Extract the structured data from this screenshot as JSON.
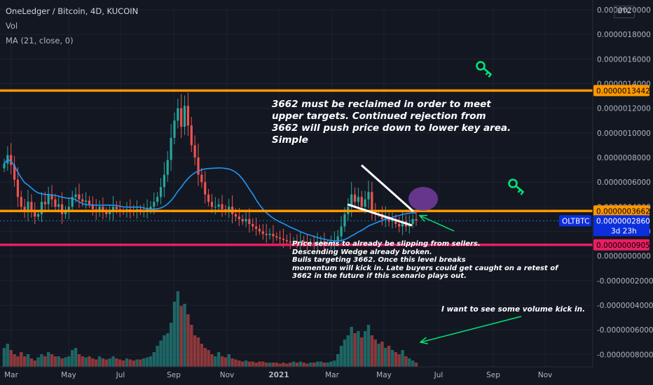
{
  "header": {
    "symbol_line": "OneLedger / Bitcoin, 4D, KUCOIN",
    "vol_label": "Vol",
    "ma_label": "MA (21, close, 0)",
    "currency_badge": "BTC"
  },
  "annotations": {
    "upper_note": [
      "3662 must be reclaimed in order to meet",
      "upper targets. Continued rejection from",
      "3662 will push price down to lower key area.",
      "Simple"
    ],
    "lower_note": [
      "Price seems to already be slipping from sellers.",
      "Descending Wedge already broken.",
      "Bulls targeting 3662. Once this level breaks",
      "momentum will kick in. Late buyers could get caught on a retest of",
      "3662 in the future if this scenario plays out."
    ],
    "volume_note": "I want to see some volume kick in."
  },
  "price_labels": {
    "level_13442": "0.0000013442",
    "level_3662": "0.0000003662",
    "current": "0.0000002860",
    "ticker": "OLTBTC",
    "countdown": "3d 23h",
    "level_905": "0.0000000905"
  },
  "colors": {
    "background": "#131722",
    "up": "#26a69a",
    "down": "#ef5350",
    "orange_level": "#ff9800",
    "pink_level": "#e91e63",
    "ma_line": "#2196f3",
    "wedge": "#ffffff",
    "key_icon": "#00e676",
    "arrow": "#00e676",
    "circle": "#7b3fa6",
    "current_label": "#0c2edb"
  },
  "chart_data": {
    "type": "candlestick",
    "y_axis_ticks": [
      "0.0000020000",
      "0.0000018000",
      "0.0000016000",
      "0.0000014000",
      "0.0000012000",
      "0.0000010000",
      "0.0000008000",
      "0.0000006000",
      "0.0000004000",
      "0.0000002000",
      "0.0000000000",
      "-0.0000002000",
      "-0.0000004000",
      "-0.0000006000",
      "-0.0000008000"
    ],
    "x_axis_ticks": [
      "Mar",
      "May",
      "Jul",
      "Sep",
      "Nov",
      "2021",
      "Mar",
      "May",
      "Jul",
      "Sep",
      "Nov"
    ],
    "ylim": [
      -9e-07,
      2e-06
    ],
    "horizontal_levels": [
      {
        "value": 1.3442e-06,
        "color": "orange"
      },
      {
        "value": 3.662e-07,
        "color": "orange"
      },
      {
        "value": 9.05e-08,
        "color": "pink"
      }
    ],
    "current_price": 2.86e-07,
    "closes": [
      7.5e-07,
      8.2e-07,
      7.4e-07,
      6.2e-07,
      4.8e-07,
      4e-07,
      3.6e-07,
      4.4e-07,
      3.6e-07,
      3.2e-07,
      3.4e-07,
      4.4e-07,
      4.2e-07,
      5e-07,
      4.6e-07,
      4e-07,
      4.2e-07,
      3.4e-07,
      3.6e-07,
      4e-07,
      4.8e-07,
      5e-07,
      4.6e-07,
      4.4e-07,
      4.5e-07,
      4.2e-07,
      3.8e-07,
      3.6e-07,
      4e-07,
      3.6e-07,
      3.4e-07,
      3.6e-07,
      4e-07,
      3.8e-07,
      3.7e-07,
      3.6e-07,
      3.8e-07,
      3.7e-07,
      3.6e-07,
      3.8e-07,
      3.6e-07,
      3.7e-07,
      3.8e-07,
      4e-07,
      4.4e-07,
      4.8e-07,
      5.6e-07,
      6.6e-07,
      7.8e-07,
      9.6e-07,
      1.1e-06,
      1.2e-06,
      1.05e-06,
      1.22e-06,
      1.06e-06,
      9e-07,
      8e-07,
      6.6e-07,
      6e-07,
      5e-07,
      4.4e-07,
      4e-07,
      4e-07,
      4.2e-07,
      3.8e-07,
      3.6e-07,
      4e-07,
      3.4e-07,
      3.2e-07,
      3e-07,
      2.8e-07,
      3e-07,
      2.6e-07,
      2.4e-07,
      2.2e-07,
      2e-07,
      1.8e-07,
      1.7e-07,
      1.8e-07,
      1.6e-07,
      1.5e-07,
      1.4e-07,
      1.3e-07,
      1.2e-07,
      1.1e-07,
      1.2e-07,
      1.1e-07,
      1.2e-07,
      1.1e-07,
      1e-07,
      1.1e-07,
      1e-07,
      1.1e-07,
      1.2e-07,
      1e-07,
      1e-07,
      1.1e-07,
      1.2e-07,
      1.6e-07,
      2.4e-07,
      3.4e-07,
      4e-07,
      5e-07,
      4.4e-07,
      4.8e-07,
      4e-07,
      4.6e-07,
      5.2e-07,
      3.6e-07,
      3.4e-07,
      3.4e-07,
      3e-07,
      3.2e-07,
      2.8e-07,
      3e-07,
      2.6e-07,
      2.4e-07,
      2.8e-07,
      2.4e-07,
      2.6e-07,
      3e-07,
      2.9e-07
    ],
    "volumes": [
      0.18,
      0.22,
      0.16,
      0.12,
      0.1,
      0.14,
      0.1,
      0.12,
      0.08,
      0.06,
      0.09,
      0.12,
      0.1,
      0.14,
      0.12,
      0.1,
      0.1,
      0.08,
      0.09,
      0.1,
      0.16,
      0.18,
      0.12,
      0.1,
      0.09,
      0.1,
      0.08,
      0.07,
      0.1,
      0.08,
      0.07,
      0.08,
      0.1,
      0.08,
      0.07,
      0.06,
      0.08,
      0.07,
      0.06,
      0.07,
      0.07,
      0.08,
      0.09,
      0.1,
      0.14,
      0.2,
      0.25,
      0.3,
      0.32,
      0.42,
      0.62,
      0.72,
      0.58,
      0.6,
      0.5,
      0.4,
      0.3,
      0.28,
      0.22,
      0.18,
      0.16,
      0.12,
      0.1,
      0.14,
      0.1,
      0.09,
      0.12,
      0.08,
      0.07,
      0.06,
      0.05,
      0.06,
      0.05,
      0.05,
      0.04,
      0.05,
      0.05,
      0.04,
      0.04,
      0.04,
      0.04,
      0.03,
      0.04,
      0.03,
      0.04,
      0.05,
      0.04,
      0.05,
      0.04,
      0.03,
      0.04,
      0.04,
      0.05,
      0.05,
      0.04,
      0.04,
      0.05,
      0.06,
      0.12,
      0.2,
      0.26,
      0.3,
      0.38,
      0.32,
      0.34,
      0.28,
      0.34,
      0.4,
      0.3,
      0.26,
      0.22,
      0.24,
      0.18,
      0.2,
      0.16,
      0.14,
      0.12,
      0.16,
      0.1,
      0.08,
      0.06,
      0.04
    ]
  }
}
